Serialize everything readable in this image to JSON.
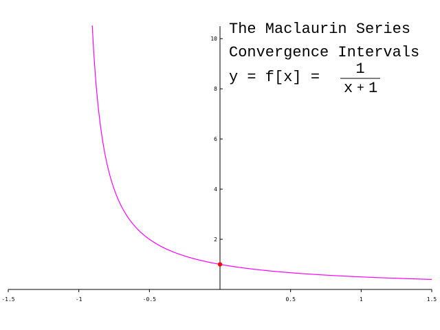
{
  "chart_data": {
    "type": "line",
    "title_lines": [
      "The Maclaurin Series",
      "Convergence Intervals"
    ],
    "formula": {
      "lhs": "y = f[x] =",
      "numerator": "1",
      "denominator_left": "x",
      "denominator_op": "+",
      "denominator_right": "1"
    },
    "xlabel": "",
    "ylabel": "",
    "xlim": [
      -1.5,
      1.5
    ],
    "ylim": [
      0,
      10.5
    ],
    "x_ticks": [
      {
        "value": -1.5,
        "label": "-1.5"
      },
      {
        "value": -1,
        "label": "-1"
      },
      {
        "value": -0.5,
        "label": "-0.5"
      },
      {
        "value": 0.5,
        "label": "0.5"
      },
      {
        "value": 1,
        "label": "1"
      },
      {
        "value": 1.5,
        "label": "1.5"
      }
    ],
    "y_ticks": [
      {
        "value": 2,
        "label": "2"
      },
      {
        "value": 4,
        "label": "4"
      },
      {
        "value": 6,
        "label": "6"
      },
      {
        "value": 8,
        "label": "8"
      },
      {
        "value": 10,
        "label": "10"
      }
    ],
    "series": [
      {
        "function": "1/(x+1)",
        "x_start": -0.905,
        "x_end": 1.5,
        "color": "#ff00ff"
      }
    ],
    "points": [
      {
        "x": 0,
        "y": 1,
        "color": "#ff0000"
      }
    ],
    "grid": false,
    "axis_color": "#000000"
  }
}
